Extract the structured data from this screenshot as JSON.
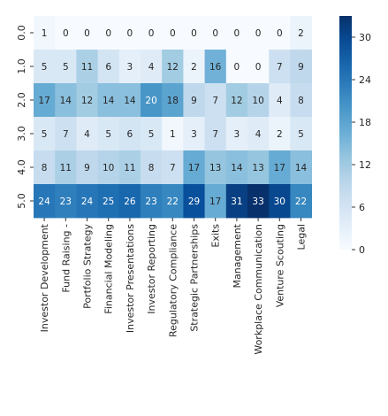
{
  "chart_data": {
    "type": "heatmap",
    "title": "",
    "xlabel": "",
    "ylabel": "",
    "x_categories": [
      "Investor Development",
      "Fund Raising -",
      "Portfolio Strategy",
      "Financial Modeling",
      "Investor Presentations",
      "Investor Reporting",
      "Regulatory Compliance",
      "Strategic Partnerships",
      "Exits",
      "Management",
      "Workplace Communication",
      "Venture Scouting",
      "Legal"
    ],
    "y_categories": [
      "0.0",
      "1.0",
      "2.0",
      "3.0",
      "4.0",
      "5.0"
    ],
    "values": [
      [
        1,
        0,
        0,
        0,
        0,
        0,
        0,
        0,
        0,
        0,
        0,
        0,
        2
      ],
      [
        5,
        5,
        11,
        6,
        3,
        4,
        12,
        2,
        16,
        0,
        0,
        7,
        9
      ],
      [
        17,
        14,
        12,
        14,
        14,
        20,
        18,
        9,
        7,
        12,
        10,
        4,
        8
      ],
      [
        5,
        7,
        4,
        5,
        6,
        5,
        1,
        3,
        7,
        3,
        4,
        2,
        5
      ],
      [
        8,
        11,
        9,
        10,
        11,
        8,
        7,
        17,
        13,
        14,
        13,
        17,
        14
      ],
      [
        24,
        23,
        24,
        25,
        26,
        23,
        22,
        29,
        17,
        31,
        33,
        30,
        22
      ]
    ],
    "colorscale": "Blues",
    "vmin": 0,
    "vmax": 33,
    "colorbar_ticks": [
      0,
      6,
      12,
      18,
      24,
      30
    ],
    "annotated": true,
    "grid": false
  }
}
